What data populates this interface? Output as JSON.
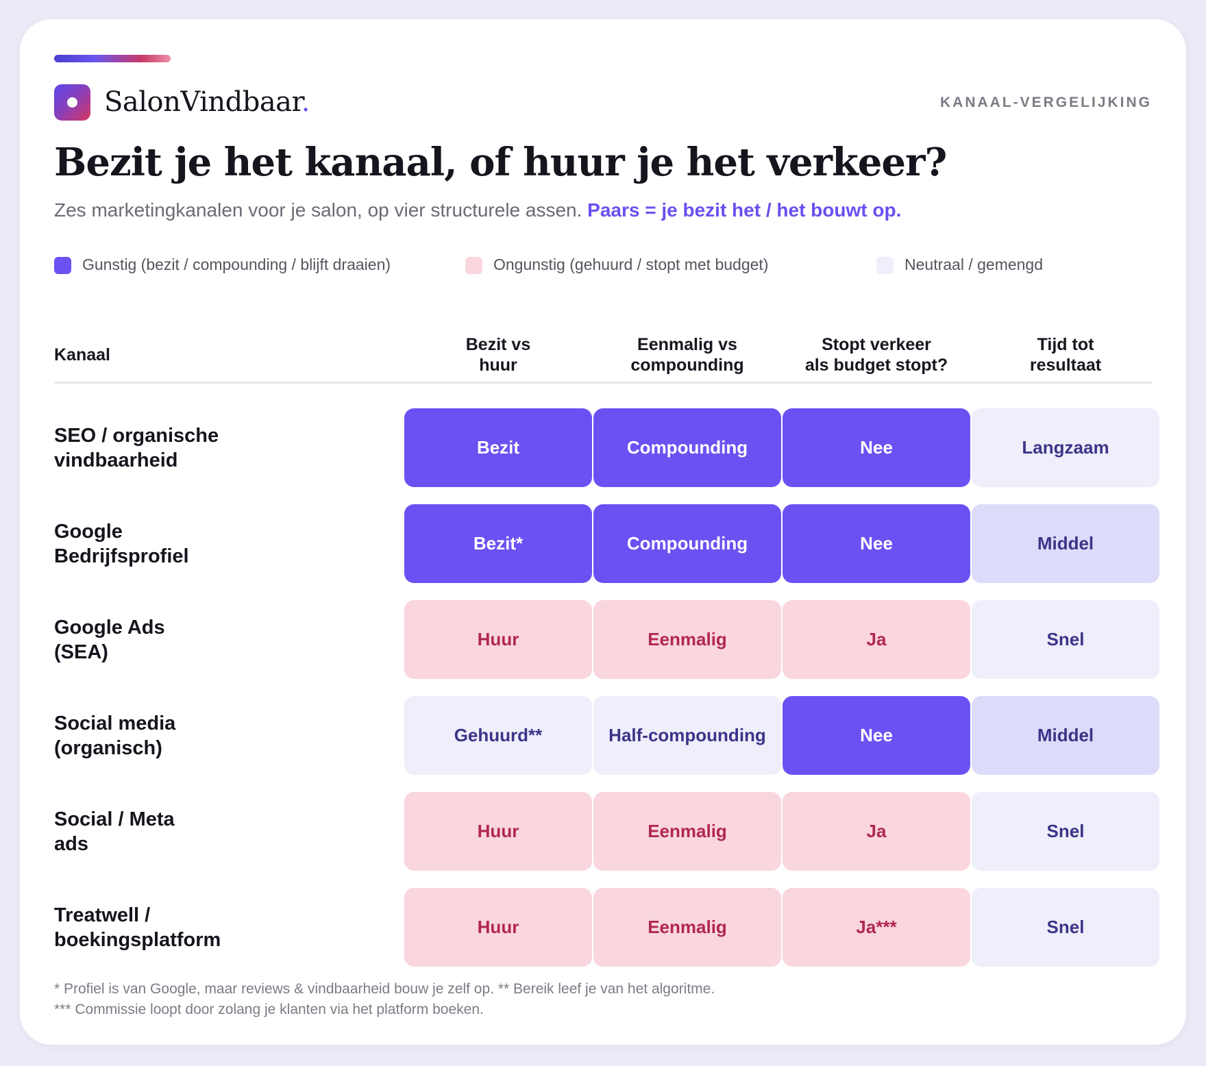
{
  "brand": {
    "name": "SalonVindbaar",
    "dot": "."
  },
  "eyebrow": "KANAAL-VERGELIJKING",
  "headline": "Bezit je het kanaal, of huur je het verkeer?",
  "subtitle": {
    "text": "Zes marketingkanalen voor je salon, op vier structurele assen.",
    "accent": "Paars = je bezit het / het bouwt op."
  },
  "legend": [
    {
      "label": "Gunstig (bezit / compounding / blijft draaien)",
      "color": "#6a52f2"
    },
    {
      "label": "Ongunstig (gehuurd / stopt met budget)",
      "color": "#fad6de"
    },
    {
      "label": "Neutraal / gemengd",
      "color": "#efeefb"
    }
  ],
  "table": {
    "headers": [
      "Kanaal",
      "Bezit vs\nhuur",
      "Eenmalig vs\ncompounding",
      "Stopt verkeer\nals budget stopt?",
      "Tijd tot\nresultaat"
    ],
    "rows": [
      {
        "label": "SEO / organische\nvindbaarheid",
        "cells": [
          {
            "value": "Bezit",
            "tone": "favorable"
          },
          {
            "value": "Compounding",
            "tone": "favorable"
          },
          {
            "value": "Nee",
            "tone": "favorable"
          },
          {
            "value": "Langzaam",
            "tone": "neutral"
          }
        ]
      },
      {
        "label": "Google\nBedrijfsprofiel",
        "cells": [
          {
            "value": "Bezit*",
            "tone": "favorable"
          },
          {
            "value": "Compounding",
            "tone": "favorable"
          },
          {
            "value": "Nee",
            "tone": "favorable"
          },
          {
            "value": "Middel",
            "tone": "medium"
          }
        ]
      },
      {
        "label": "Google Ads\n(SEA)",
        "cells": [
          {
            "value": "Huur",
            "tone": "unfavorable"
          },
          {
            "value": "Eenmalig",
            "tone": "unfavorable"
          },
          {
            "value": "Ja",
            "tone": "unfavorable"
          },
          {
            "value": "Snel",
            "tone": "neutral"
          }
        ]
      },
      {
        "label": "Social media\n(organisch)",
        "cells": [
          {
            "value": "Gehuurd**",
            "tone": "neutral"
          },
          {
            "value": "Half-compounding",
            "tone": "neutral"
          },
          {
            "value": "Nee",
            "tone": "favorable"
          },
          {
            "value": "Middel",
            "tone": "medium"
          }
        ]
      },
      {
        "label": "Social / Meta\nads",
        "cells": [
          {
            "value": "Huur",
            "tone": "unfavorable"
          },
          {
            "value": "Eenmalig",
            "tone": "unfavorable"
          },
          {
            "value": "Ja",
            "tone": "unfavorable"
          },
          {
            "value": "Snel",
            "tone": "neutral"
          }
        ]
      },
      {
        "label": "Treatwell /\nboekingsplatform",
        "cells": [
          {
            "value": "Huur",
            "tone": "unfavorable"
          },
          {
            "value": "Eenmalig",
            "tone": "unfavorable"
          },
          {
            "value": "Ja***",
            "tone": "unfavorable"
          },
          {
            "value": "Snel",
            "tone": "neutral"
          }
        ]
      }
    ]
  },
  "footnotes": [
    "* Profiel is van Google, maar reviews & vindbaarheid bouw je zelf op. ** Bereik leef je van het algoritme.",
    "*** Commissie loopt door zolang je klanten via het platform boeken."
  ],
  "colors": {
    "favorable": "#6a52f2",
    "unfavorable": "#fad6de",
    "neutral": "#efeefb",
    "medium": "#dcdbf9",
    "accent": "#6a4ff0"
  }
}
